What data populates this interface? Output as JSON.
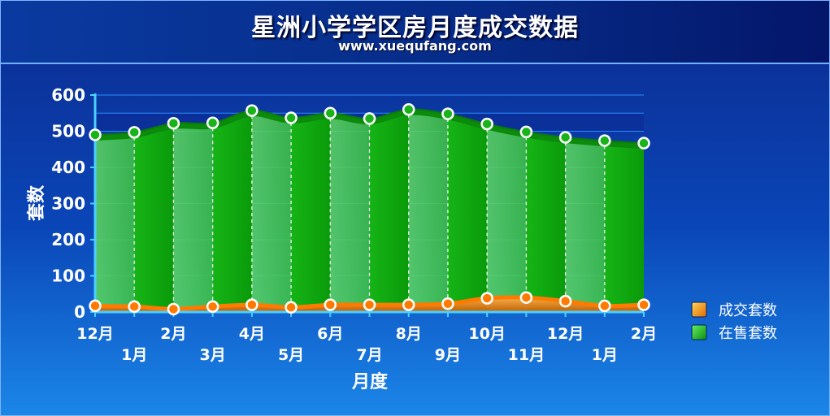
{
  "header": {
    "title": "星洲小学学区房月度成交数据",
    "subtitle": "www.xuequfang.com"
  },
  "chart_data": {
    "type": "area",
    "title": "星洲小学学区房月度成交数据",
    "subtitle": "www.xuequfang.com",
    "xlabel": "月度",
    "ylabel": "套数",
    "ylim": [
      0,
      600
    ],
    "yticks": [
      0,
      100,
      200,
      300,
      400,
      500,
      600
    ],
    "grid": true,
    "legend_position": "right",
    "categories": [
      "12月",
      "1月",
      "2月",
      "3月",
      "4月",
      "5月",
      "6月",
      "7月",
      "8月",
      "9月",
      "10月",
      "11月",
      "12月",
      "1月",
      "2月"
    ],
    "series": [
      {
        "name": "成交套数",
        "color": "#ff8c00",
        "values": [
          17,
          15,
          8,
          15,
          20,
          13,
          20,
          20,
          20,
          23,
          38,
          40,
          30,
          17,
          20
        ]
      },
      {
        "name": "在售套数",
        "color": "#11c111",
        "values": [
          490,
          497,
          522,
          523,
          557,
          537,
          550,
          535,
          560,
          548,
          520,
          498,
          483,
          474,
          467
        ]
      }
    ]
  }
}
